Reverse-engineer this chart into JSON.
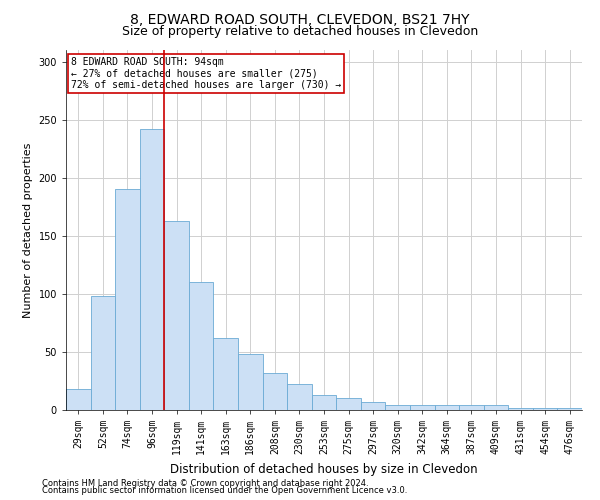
{
  "title": "8, EDWARD ROAD SOUTH, CLEVEDON, BS21 7HY",
  "subtitle": "Size of property relative to detached houses in Clevedon",
  "xlabel": "Distribution of detached houses by size in Clevedon",
  "ylabel": "Number of detached properties",
  "footer_line1": "Contains HM Land Registry data © Crown copyright and database right 2024.",
  "footer_line2": "Contains public sector information licensed under the Open Government Licence v3.0.",
  "categories": [
    "29sqm",
    "52sqm",
    "74sqm",
    "96sqm",
    "119sqm",
    "141sqm",
    "163sqm",
    "186sqm",
    "208sqm",
    "230sqm",
    "253sqm",
    "275sqm",
    "297sqm",
    "320sqm",
    "342sqm",
    "364sqm",
    "387sqm",
    "409sqm",
    "431sqm",
    "454sqm",
    "476sqm"
  ],
  "values": [
    18,
    98,
    190,
    242,
    163,
    110,
    62,
    48,
    32,
    22,
    13,
    10,
    7,
    4,
    4,
    4,
    4,
    4,
    2,
    2,
    2
  ],
  "bar_color": "#cce0f5",
  "bar_edge_color": "#6aaad4",
  "vline_color": "#cc0000",
  "vline_x": 3.5,
  "annotation_line1": "8 EDWARD ROAD SOUTH: 94sqm",
  "annotation_line2": "← 27% of detached houses are smaller (275)",
  "annotation_line3": "72% of semi-detached houses are larger (730) →",
  "annotation_box_edge_color": "#cc0000",
  "ylim": [
    0,
    310
  ],
  "yticks": [
    0,
    50,
    100,
    150,
    200,
    250,
    300
  ],
  "grid_color": "#d0d0d0",
  "background_color": "#ffffff",
  "title_fontsize": 10,
  "subtitle_fontsize": 9,
  "ylabel_fontsize": 8,
  "xlabel_fontsize": 8.5,
  "tick_fontsize": 7,
  "footer_fontsize": 6
}
